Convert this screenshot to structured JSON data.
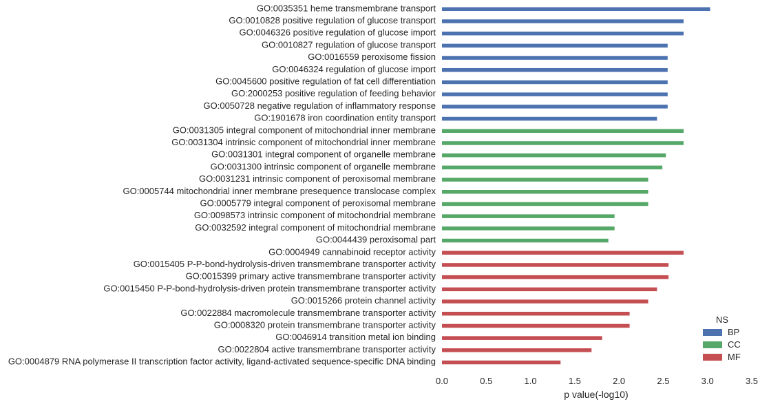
{
  "chart_data": {
    "type": "bar",
    "orientation": "horizontal",
    "xlabel": "p value(-log10)",
    "ylabel": "",
    "xlim": [
      0,
      3.5
    ],
    "xticks": [
      "0.0",
      "0.5",
      "1.0",
      "1.5",
      "2.0",
      "2.5",
      "3.0",
      "3.5"
    ],
    "grid": false,
    "legend": {
      "title": "NS",
      "placement": "bottom-right",
      "entries": [
        {
          "name": "BP",
          "color": "#4c72b0"
        },
        {
          "name": "CC",
          "color": "#55a868"
        },
        {
          "name": "MF",
          "color": "#c44e52"
        }
      ]
    },
    "bars": [
      {
        "label": "GO:0035351 heme transmembrane transport",
        "value": 3.03,
        "group": "BP"
      },
      {
        "label": "GO:0010828 positive regulation of glucose transport",
        "value": 2.73,
        "group": "BP"
      },
      {
        "label": "GO:0046326 positive regulation of glucose import",
        "value": 2.73,
        "group": "BP"
      },
      {
        "label": "GO:0010827 regulation of glucose transport",
        "value": 2.55,
        "group": "BP"
      },
      {
        "label": "GO:0016559 peroxisome fission",
        "value": 2.55,
        "group": "BP"
      },
      {
        "label": "GO:0046324 regulation of glucose import",
        "value": 2.55,
        "group": "BP"
      },
      {
        "label": "GO:0045600 positive regulation of fat cell differentiation",
        "value": 2.55,
        "group": "BP"
      },
      {
        "label": "GO:2000253 positive regulation of feeding behavior",
        "value": 2.55,
        "group": "BP"
      },
      {
        "label": "GO:0050728 negative regulation of inflammatory response",
        "value": 2.55,
        "group": "BP"
      },
      {
        "label": "GO:1901678 iron coordination entity transport",
        "value": 2.43,
        "group": "BP"
      },
      {
        "label": "GO:0031305 integral component of mitochondrial inner membrane",
        "value": 2.73,
        "group": "CC"
      },
      {
        "label": "GO:0031304 intrinsic component of mitochondrial inner membrane",
        "value": 2.73,
        "group": "CC"
      },
      {
        "label": "GO:0031301 integral component of organelle membrane",
        "value": 2.53,
        "group": "CC"
      },
      {
        "label": "GO:0031300 intrinsic component of organelle membrane",
        "value": 2.49,
        "group": "CC"
      },
      {
        "label": "GO:0031231 intrinsic component of peroxisomal membrane",
        "value": 2.33,
        "group": "CC"
      },
      {
        "label": "GO:0005744 mitochondrial inner membrane presequence translocase complex",
        "value": 2.33,
        "group": "CC"
      },
      {
        "label": "GO:0005779 integral component of peroxisomal membrane",
        "value": 2.33,
        "group": "CC"
      },
      {
        "label": "GO:0098573 intrinsic component of mitochondrial membrane",
        "value": 1.95,
        "group": "CC"
      },
      {
        "label": "GO:0032592 integral component of mitochondrial membrane",
        "value": 1.95,
        "group": "CC"
      },
      {
        "label": "GO:0044439 peroxisomal part",
        "value": 1.88,
        "group": "CC"
      },
      {
        "label": "GO:0004949 cannabinoid receptor activity",
        "value": 2.73,
        "group": "MF"
      },
      {
        "label": "GO:0015405 P-P-bond-hydrolysis-driven transmembrane transporter activity",
        "value": 2.56,
        "group": "MF"
      },
      {
        "label": "GO:0015399 primary active transmembrane transporter activity",
        "value": 2.56,
        "group": "MF"
      },
      {
        "label": "GO:0015450 P-P-bond-hydrolysis-driven protein transmembrane transporter activity",
        "value": 2.43,
        "group": "MF"
      },
      {
        "label": "GO:0015266 protein channel activity",
        "value": 2.33,
        "group": "MF"
      },
      {
        "label": "GO:0022884 macromolecule transmembrane transporter activity",
        "value": 2.12,
        "group": "MF"
      },
      {
        "label": "GO:0008320 protein transmembrane transporter activity",
        "value": 2.12,
        "group": "MF"
      },
      {
        "label": "GO:0046914 transition metal ion binding",
        "value": 1.81,
        "group": "MF"
      },
      {
        "label": "GO:0022804 active transmembrane transporter activity",
        "value": 1.69,
        "group": "MF"
      },
      {
        "label": "GO:0004879 RNA polymerase II transcription factor activity, ligand-activated sequence-specific DNA binding",
        "value": 1.34,
        "group": "MF"
      }
    ]
  }
}
